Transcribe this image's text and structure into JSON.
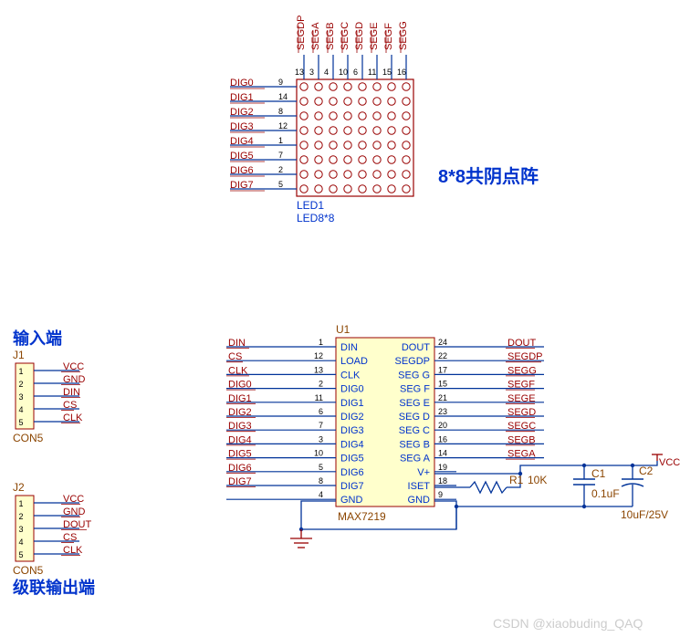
{
  "colors": {
    "wire": "#003399",
    "box": "#990000",
    "text_brown": "#8B4500",
    "text_blue": "#0033cc",
    "text_pin": "#990000",
    "bg": "#ffffff"
  },
  "title_matrix": "8*8共阴点阵",
  "matrix": {
    "ref": "LED1",
    "part": "LED8*8",
    "cols": 8,
    "rows": 8,
    "top_pins": [
      {
        "num": "13",
        "name": "SEGDP"
      },
      {
        "num": "3",
        "name": "SEGA"
      },
      {
        "num": "4",
        "name": "SEGB"
      },
      {
        "num": "10",
        "name": "SEGC"
      },
      {
        "num": "6",
        "name": "SEGD"
      },
      {
        "num": "11",
        "name": "SEGE"
      },
      {
        "num": "15",
        "name": "SEGF"
      },
      {
        "num": "16",
        "name": "SEGG"
      }
    ],
    "left_pins": [
      {
        "num": "9",
        "name": "DIG0"
      },
      {
        "num": "14",
        "name": "DIG1"
      },
      {
        "num": "8",
        "name": "DIG2"
      },
      {
        "num": "12",
        "name": "DIG3"
      },
      {
        "num": "1",
        "name": "DIG4"
      },
      {
        "num": "7",
        "name": "DIG5"
      },
      {
        "num": "2",
        "name": "DIG6"
      },
      {
        "num": "5",
        "name": "DIG7"
      }
    ]
  },
  "connectors": {
    "in": {
      "title": "输入端",
      "ref": "J1",
      "part": "CON5",
      "pins": [
        {
          "n": "1",
          "label": "VCC"
        },
        {
          "n": "2",
          "label": "GND"
        },
        {
          "n": "3",
          "label": "DIN"
        },
        {
          "n": "4",
          "label": "CS"
        },
        {
          "n": "5",
          "label": "CLK"
        }
      ]
    },
    "out": {
      "title": "级联输出端",
      "ref": "J2",
      "part": "CON5",
      "pins": [
        {
          "n": "1",
          "label": "VCC"
        },
        {
          "n": "2",
          "label": "GND"
        },
        {
          "n": "3",
          "label": "DOUT"
        },
        {
          "n": "4",
          "label": "CS"
        },
        {
          "n": "5",
          "label": "CLK"
        }
      ]
    }
  },
  "ic": {
    "ref": "U1",
    "part": "MAX7219",
    "left": [
      {
        "num": "1",
        "inner": "DIN",
        "net": "DIN"
      },
      {
        "num": "12",
        "inner": "LOAD",
        "net": "CS"
      },
      {
        "num": "13",
        "inner": "CLK",
        "net": "CLK"
      },
      {
        "num": "2",
        "inner": "DIG0",
        "net": "DIG0"
      },
      {
        "num": "11",
        "inner": "DIG1",
        "net": "DIG1"
      },
      {
        "num": "6",
        "inner": "DIG2",
        "net": "DIG2"
      },
      {
        "num": "7",
        "inner": "DIG3",
        "net": "DIG3"
      },
      {
        "num": "3",
        "inner": "DIG4",
        "net": "DIG4"
      },
      {
        "num": "10",
        "inner": "DIG5",
        "net": "DIG5"
      },
      {
        "num": "5",
        "inner": "DIG6",
        "net": "DIG6"
      },
      {
        "num": "8",
        "inner": "DIG7",
        "net": "DIG7"
      },
      {
        "num": "4",
        "inner": "GND",
        "net": ""
      }
    ],
    "right": [
      {
        "num": "24",
        "inner": "DOUT",
        "net": "DOUT"
      },
      {
        "num": "22",
        "inner": "SEGDP",
        "net": "SEGDP"
      },
      {
        "num": "17",
        "inner": "SEG G",
        "net": "SEGG"
      },
      {
        "num": "15",
        "inner": "SEG F",
        "net": "SEGF"
      },
      {
        "num": "21",
        "inner": "SEG E",
        "net": "SEGE"
      },
      {
        "num": "23",
        "inner": "SEG D",
        "net": "SEGD"
      },
      {
        "num": "20",
        "inner": "SEG C",
        "net": "SEGC"
      },
      {
        "num": "16",
        "inner": "SEG B",
        "net": "SEGB"
      },
      {
        "num": "14",
        "inner": "SEG A",
        "net": "SEGA"
      },
      {
        "num": "19",
        "inner": "V+",
        "net": ""
      },
      {
        "num": "18",
        "inner": "ISET",
        "net": ""
      },
      {
        "num": "9",
        "inner": "GND",
        "net": ""
      }
    ]
  },
  "passives": {
    "r1": {
      "ref": "R1",
      "val": "10K"
    },
    "c1": {
      "ref": "C1",
      "val": "0.1uF"
    },
    "c2": {
      "ref": "C2",
      "val": "10uF/25V"
    },
    "vcc": "VCC"
  },
  "watermark": "CSDN @xiaobuding_QAQ"
}
